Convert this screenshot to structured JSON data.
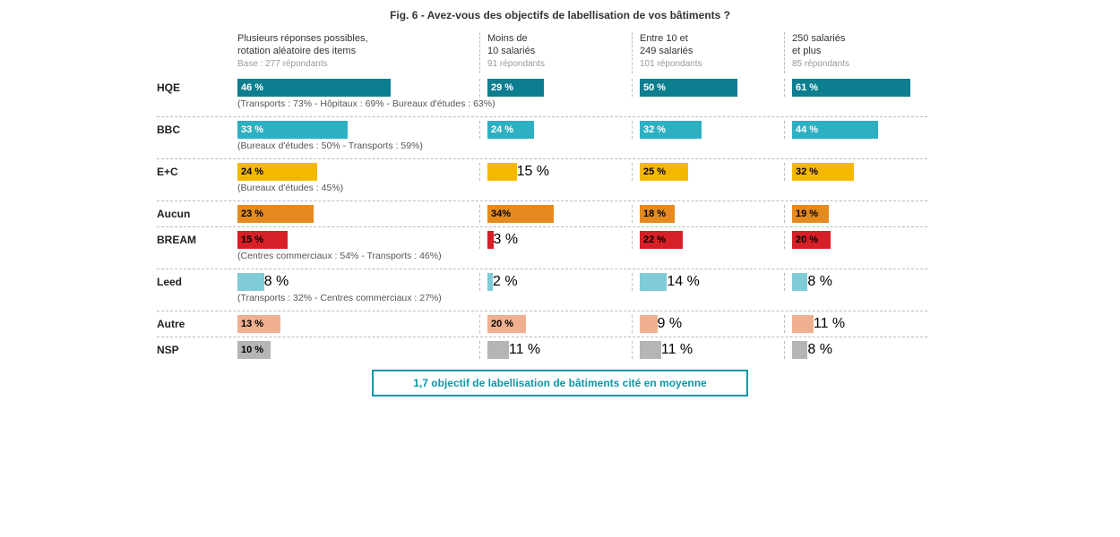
{
  "title": "Fig. 6 - Avez-vous des objectifs de labellisation de vos bâtiments ?",
  "main_header": {
    "line1": "Plusieurs réponses possibles,",
    "line2": "rotation aléatoire des items",
    "sub": "Base : 277 répondants"
  },
  "columns": [
    {
      "line1": "Moins de",
      "line2": "10 salariés",
      "sub": "91 répondants"
    },
    {
      "line1": "Entre 10 et",
      "line2": "249 salariés",
      "sub": "101 répondants"
    },
    {
      "line1": "250 salariés",
      "line2": "et plus",
      "sub": "85 répondants"
    }
  ],
  "max_main": 70,
  "max_sub": 70,
  "colors": {
    "hqe": "#0d7e8f",
    "bbc": "#2eb0c2",
    "ec": "#f5b800",
    "aucun": "#e58a1f",
    "bream": "#d61f26",
    "leed": "#7fcbd6",
    "autre": "#f0b090",
    "nsp": "#b5b5b5"
  },
  "text_colors": {
    "hqe": "#fff",
    "bbc": "#fff",
    "ec": "#000",
    "aucun": "#000",
    "bream": "#000",
    "leed": "#000",
    "autre": "#000",
    "nsp": "#000"
  },
  "rows": [
    {
      "key": "hqe",
      "label": "HQE",
      "main": "46 %",
      "mainv": 46,
      "subs": [
        {
          "t": "29 %",
          "v": 29
        },
        {
          "t": "50 %",
          "v": 50
        },
        {
          "t": "61 %",
          "v": 61
        }
      ],
      "note": "(Transports : 73% - Hôpitaux : 69% - Bureaux d'études : 63%)"
    },
    {
      "key": "bbc",
      "label": "BBC",
      "main": "33 %",
      "mainv": 33,
      "subs": [
        {
          "t": "24 %",
          "v": 24
        },
        {
          "t": "32 %",
          "v": 32
        },
        {
          "t": "44 %",
          "v": 44
        }
      ],
      "note": "(Bureaux d'études : 50% - Transports : 59%)"
    },
    {
      "key": "ec",
      "label": "E+C",
      "main": "24 %",
      "mainv": 24,
      "subs": [
        {
          "t": "15 %",
          "v": 15
        },
        {
          "t": "25 %",
          "v": 25
        },
        {
          "t": "32 %",
          "v": 32
        }
      ],
      "note": "(Bureaux d'études : 45%)"
    },
    {
      "key": "aucun",
      "label": "Aucun",
      "main": "23 %",
      "mainv": 23,
      "subs": [
        {
          "t": "34%",
          "v": 34
        },
        {
          "t": "18 %",
          "v": 18
        },
        {
          "t": "19 %",
          "v": 19
        }
      ],
      "note": ""
    },
    {
      "key": "bream",
      "label": "BREAM",
      "main": "15 %",
      "mainv": 15,
      "subs": [
        {
          "t": "3 %",
          "v": 3
        },
        {
          "t": "22 %",
          "v": 22
        },
        {
          "t": "20 %",
          "v": 20
        }
      ],
      "note": "(Centres commerciaux : 54% - Transports : 46%)"
    },
    {
      "key": "leed",
      "label": "Leed",
      "main": "8 %",
      "mainv": 8,
      "subs": [
        {
          "t": "2 %",
          "v": 2
        },
        {
          "t": "14 %",
          "v": 14
        },
        {
          "t": "8 %",
          "v": 8
        }
      ],
      "note": "(Transports : 32% - Centres commerciaux : 27%)"
    },
    {
      "key": "autre",
      "label": "Autre",
      "main": "13 %",
      "mainv": 13,
      "subs": [
        {
          "t": "20 %",
          "v": 20
        },
        {
          "t": "9 %",
          "v": 9
        },
        {
          "t": "11 %",
          "v": 11
        }
      ],
      "note": ""
    },
    {
      "key": "nsp",
      "label": "NSP",
      "main": "10 %",
      "mainv": 10,
      "subs": [
        {
          "t": "11 %",
          "v": 11
        },
        {
          "t": "11 %",
          "v": 11
        },
        {
          "t": "8 %",
          "v": 8
        }
      ],
      "note": ""
    }
  ],
  "summary": "1,7 objectif de labellisation de bâtiments cité en moyenne"
}
